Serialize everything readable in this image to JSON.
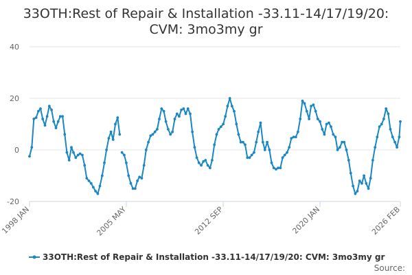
{
  "chart_data": {
    "type": "line",
    "title_lines": [
      "33OTH:Rest of Repair & Installation -33.11-14/17/19/20:",
      "CVM: 3mo3my gr"
    ],
    "ylim": [
      -20,
      40
    ],
    "yticks": [
      -20,
      0,
      20,
      40
    ],
    "x_range": [
      1998.0,
      2026.083
    ],
    "xticks": [
      {
        "label": "1998 JAN",
        "x": 1998.0
      },
      {
        "label": "2005 MAY",
        "x": 2005.333
      },
      {
        "label": "2012 SEP",
        "x": 2012.667
      },
      {
        "label": "2020 JAN",
        "x": 2020.0
      },
      {
        "label": "2026 FEB",
        "x": 2026.083
      }
    ],
    "grid": "horizontal",
    "legend_position": "bottom",
    "series": [
      {
        "name": "33OTH:Rest of Repair & Installation -33.11-14/17/19/20: CVM: 3mo3my gr",
        "color": "#1a87c2",
        "points": [
          [
            1998.0,
            -2.5
          ],
          [
            1998.17,
            1.0
          ],
          [
            1998.33,
            12.0
          ],
          [
            1998.5,
            12.5
          ],
          [
            1998.67,
            15.0
          ],
          [
            1998.83,
            16.0
          ],
          [
            1999.0,
            12.0
          ],
          [
            1999.17,
            9.5
          ],
          [
            1999.33,
            13.0
          ],
          [
            1999.5,
            17.0
          ],
          [
            1999.67,
            15.5
          ],
          [
            1999.83,
            11.0
          ],
          [
            2000.0,
            8.5
          ],
          [
            2000.17,
            11.0
          ],
          [
            2000.33,
            13.0
          ],
          [
            2000.5,
            13.0
          ],
          [
            2000.67,
            6.0
          ],
          [
            2000.83,
            -1.0
          ],
          [
            2001.0,
            -4.0
          ],
          [
            2001.17,
            1.0
          ],
          [
            2001.33,
            -1.0
          ],
          [
            2001.5,
            -3.0
          ],
          [
            2001.67,
            -2.0
          ],
          [
            2001.83,
            -1.5
          ],
          [
            2002.0,
            -2.0
          ],
          [
            2002.17,
            -6.0
          ],
          [
            2002.33,
            -11.0
          ],
          [
            2002.5,
            -12.0
          ],
          [
            2002.67,
            -13.0
          ],
          [
            2002.83,
            -14.5
          ],
          [
            2003.0,
            -16.0
          ],
          [
            2003.17,
            -17.0
          ],
          [
            2003.33,
            -14.0
          ],
          [
            2003.5,
            -10.0
          ],
          [
            2003.67,
            -5.0
          ],
          [
            2003.83,
            0.0
          ],
          [
            2004.0,
            4.5
          ],
          [
            2004.17,
            7.0
          ],
          [
            2004.33,
            4.0
          ],
          [
            2004.5,
            10.0
          ],
          [
            2004.67,
            12.5
          ],
          [
            2004.83,
            6.0
          ],
          null,
          [
            2005.0,
            -1.0
          ],
          [
            2005.17,
            -2.0
          ],
          [
            2005.33,
            -5.0
          ],
          [
            2005.5,
            -10.0
          ],
          [
            2005.67,
            -13.0
          ],
          [
            2005.83,
            -15.0
          ],
          [
            2006.0,
            -15.0
          ],
          [
            2006.17,
            -12.0
          ],
          [
            2006.33,
            -10.5
          ],
          [
            2006.5,
            -11.0
          ],
          [
            2006.67,
            -6.0
          ],
          [
            2006.83,
            0.0
          ],
          [
            2007.0,
            3.0
          ],
          [
            2007.17,
            5.5
          ],
          [
            2007.33,
            6.0
          ],
          [
            2007.5,
            7.0
          ],
          [
            2007.67,
            8.0
          ],
          [
            2007.83,
            12.0
          ],
          [
            2008.0,
            16.0
          ],
          [
            2008.17,
            15.0
          ],
          [
            2008.33,
            11.0
          ],
          [
            2008.5,
            8.0
          ],
          [
            2008.67,
            6.0
          ],
          [
            2008.83,
            7.0
          ],
          [
            2009.0,
            12.0
          ],
          [
            2009.17,
            14.0
          ],
          [
            2009.33,
            13.0
          ],
          [
            2009.5,
            15.5
          ],
          [
            2009.67,
            16.0
          ],
          [
            2009.83,
            14.0
          ],
          [
            2010.0,
            16.0
          ],
          [
            2010.17,
            14.0
          ],
          [
            2010.33,
            7.0
          ],
          [
            2010.5,
            1.0
          ],
          [
            2010.67,
            -3.0
          ],
          [
            2010.83,
            -5.0
          ],
          [
            2011.0,
            -6.0
          ],
          [
            2011.17,
            -4.5
          ],
          [
            2011.33,
            -4.0
          ],
          [
            2011.5,
            -6.0
          ],
          [
            2011.67,
            -7.0
          ],
          [
            2011.83,
            -4.0
          ],
          [
            2012.0,
            2.0
          ],
          [
            2012.17,
            6.0
          ],
          [
            2012.33,
            8.0
          ],
          [
            2012.5,
            9.0
          ],
          [
            2012.67,
            10.0
          ],
          [
            2012.83,
            13.0
          ],
          [
            2013.0,
            17.0
          ],
          [
            2013.17,
            20.0
          ],
          [
            2013.33,
            17.0
          ],
          [
            2013.5,
            15.0
          ],
          [
            2013.67,
            10.0
          ],
          [
            2013.83,
            6.0
          ],
          [
            2014.0,
            3.0
          ],
          [
            2014.17,
            3.0
          ],
          [
            2014.33,
            2.0
          ],
          [
            2014.5,
            -3.0
          ],
          [
            2014.67,
            -3.0
          ],
          [
            2014.83,
            -2.0
          ],
          [
            2015.0,
            -1.0
          ],
          [
            2015.17,
            3.0
          ],
          [
            2015.33,
            7.0
          ],
          [
            2015.5,
            10.5
          ],
          [
            2015.67,
            3.0
          ],
          [
            2015.83,
            0.0
          ],
          [
            2016.0,
            3.0
          ],
          [
            2016.17,
            0.0
          ],
          [
            2016.33,
            -5.0
          ],
          [
            2016.5,
            -7.0
          ],
          [
            2016.67,
            -7.5
          ],
          [
            2016.83,
            -7.0
          ],
          [
            2017.0,
            -7.0
          ],
          [
            2017.17,
            -3.0
          ],
          [
            2017.33,
            -2.0
          ],
          [
            2017.5,
            -1.0
          ],
          [
            2017.67,
            1.0
          ],
          [
            2017.83,
            4.5
          ],
          [
            2018.0,
            5.0
          ],
          [
            2018.17,
            5.0
          ],
          [
            2018.33,
            7.0
          ],
          [
            2018.5,
            12.0
          ],
          [
            2018.67,
            19.0
          ],
          [
            2018.83,
            18.0
          ],
          [
            2019.0,
            15.0
          ],
          [
            2019.17,
            12.0
          ],
          [
            2019.33,
            17.0
          ],
          [
            2019.5,
            17.5
          ],
          [
            2019.67,
            15.0
          ],
          [
            2019.83,
            12.0
          ],
          [
            2020.0,
            11.0
          ],
          [
            2020.17,
            8.0
          ],
          [
            2020.33,
            6.0
          ],
          [
            2020.5,
            10.0
          ],
          [
            2020.67,
            10.5
          ],
          [
            2020.83,
            9.0
          ],
          [
            2021.0,
            6.0
          ],
          [
            2021.17,
            5.0
          ],
          [
            2021.33,
            0.0
          ],
          [
            2021.5,
            1.0
          ],
          [
            2021.67,
            3.0
          ],
          [
            2021.83,
            3.0
          ],
          [
            2022.0,
            0.0
          ],
          [
            2022.17,
            -4.0
          ],
          [
            2022.33,
            -9.0
          ],
          [
            2022.5,
            -14.0
          ],
          [
            2022.67,
            -17.0
          ],
          [
            2022.83,
            -16.0
          ],
          [
            2023.0,
            -12.0
          ],
          [
            2023.17,
            -13.0
          ],
          [
            2023.33,
            -10.0
          ],
          [
            2023.5,
            -13.0
          ],
          [
            2023.67,
            -15.0
          ],
          [
            2023.83,
            -11.0
          ],
          [
            2024.0,
            -4.0
          ],
          [
            2024.17,
            1.0
          ],
          [
            2024.33,
            5.0
          ],
          [
            2024.5,
            9.0
          ],
          [
            2024.67,
            10.0
          ],
          [
            2024.83,
            12.0
          ],
          [
            2025.0,
            16.0
          ],
          [
            2025.17,
            14.0
          ],
          [
            2025.33,
            8.0
          ],
          [
            2025.5,
            5.0
          ],
          [
            2025.67,
            3.0
          ],
          [
            2025.83,
            1.0
          ],
          [
            2026.0,
            5.0
          ],
          [
            2026.083,
            11.0
          ]
        ]
      }
    ]
  },
  "legend": {
    "label": "33OTH:Rest of Repair & Installation -33.11-14/17/19/20: CVM: 3mo3my gr"
  },
  "credit": "Source:"
}
